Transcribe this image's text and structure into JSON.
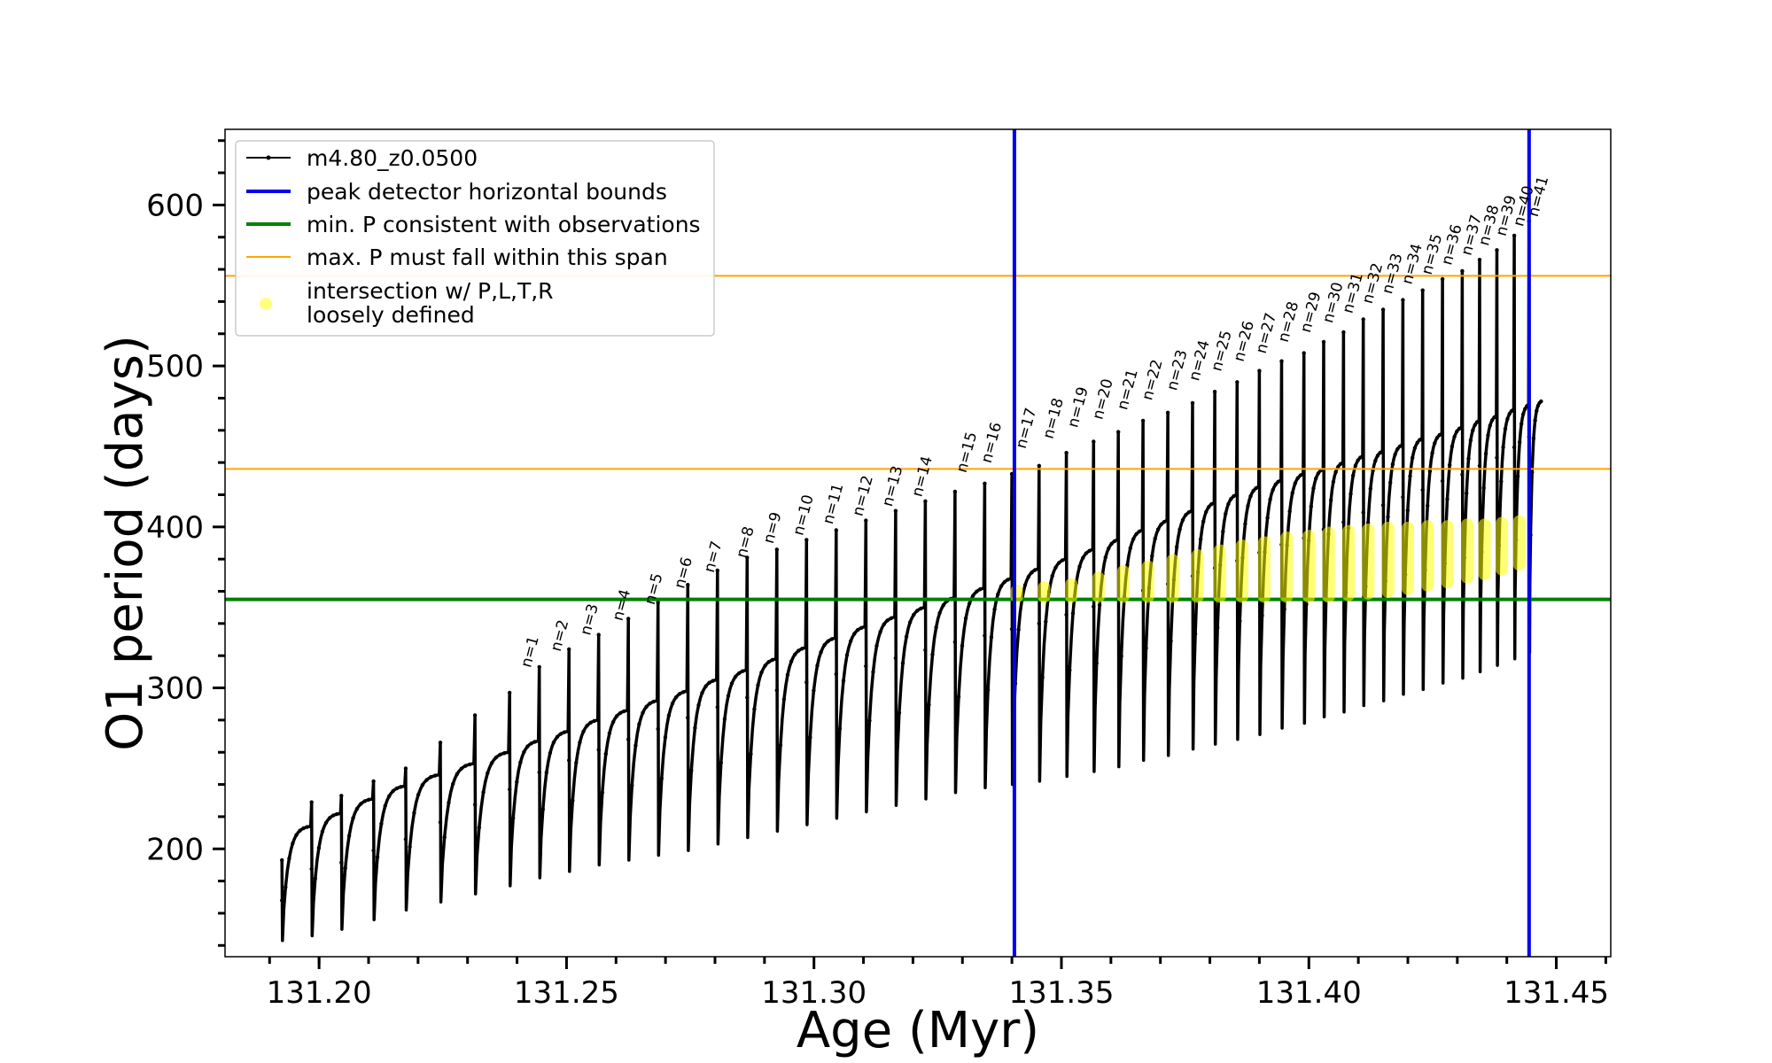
{
  "chart_data": {
    "type": "line",
    "xlabel": "Age (Myr)",
    "ylabel": "O1 period (days)",
    "xlim": [
      131.181,
      131.461
    ],
    "ylim": [
      133,
      647
    ],
    "x_ticks": [
      131.2,
      131.25,
      131.3,
      131.35,
      131.4,
      131.45
    ],
    "x_tick_labels": [
      "131.20",
      "131.25",
      "131.30",
      "131.35",
      "131.40",
      "131.45"
    ],
    "y_ticks": [
      200,
      300,
      400,
      500,
      600
    ],
    "y_tick_labels": [
      "200",
      "300",
      "400",
      "500",
      "600"
    ],
    "grid": false,
    "legend_position": "upper-left",
    "legend": [
      {
        "label": "m4.80_z0.0500",
        "kind": "line-marker",
        "color": "#000000"
      },
      {
        "label": "peak detector horizontal bounds",
        "kind": "line",
        "color": "#0000ee"
      },
      {
        "label": "min. P consistent with observations",
        "kind": "line",
        "color": "#008000"
      },
      {
        "label": "max. P must fall within this span",
        "kind": "line",
        "color": "#ffa500"
      },
      {
        "label_lines": [
          "intersection w/ P,L,T,R",
          "loosely defined"
        ],
        "kind": "marker",
        "color": "#ffff99"
      }
    ],
    "series": [
      {
        "name": "m4.80_z0.0500",
        "color": "#000000",
        "description_of_shape": "thermal pulse cycles; each cycle rises from a trough to a pre-pulse period then spikes",
        "pulse_ages": [
          131.1925,
          131.1985,
          131.2045,
          131.211,
          131.2175,
          131.2245,
          131.2315,
          131.2385,
          131.2445,
          131.2505,
          131.2565,
          131.2625,
          131.2685,
          131.2745,
          131.2805,
          131.2865,
          131.2925,
          131.2985,
          131.3045,
          131.3105,
          131.3165,
          131.3225,
          131.3285,
          131.3345,
          131.34,
          131.3455,
          131.351,
          131.3565,
          131.3615,
          131.3665,
          131.3715,
          131.3765,
          131.381,
          131.3855,
          131.39,
          131.3945,
          131.399,
          131.403,
          131.407,
          131.411,
          131.415,
          131.419,
          131.423,
          131.427,
          131.431,
          131.4345,
          131.438,
          131.4415,
          131.4445
        ],
        "trough_periods": [
          143,
          146,
          150,
          156,
          162,
          167,
          172,
          177,
          182,
          186,
          190,
          193,
          196,
          199,
          203,
          207,
          211,
          215,
          219,
          223,
          227,
          231,
          235,
          238,
          240,
          242,
          245,
          248,
          251,
          255,
          258,
          262,
          265,
          268,
          271,
          275,
          278,
          282,
          285,
          289,
          292,
          296,
          299,
          303,
          306,
          310,
          314,
          318,
          322
        ],
        "peak_periods": [
          214,
          222,
          231,
          239,
          246,
          253,
          260,
          267,
          273,
          280,
          286,
          292,
          298,
          305,
          311,
          318,
          325,
          331,
          338,
          344,
          350,
          356,
          362,
          368,
          374,
          380,
          386,
          392,
          398,
          404,
          410,
          415,
          420,
          425,
          429,
          433,
          436,
          440,
          444,
          447,
          451,
          455,
          458,
          462,
          466,
          469,
          473,
          476,
          478
        ],
        "spike_periods": [
          193,
          229,
          233,
          242,
          250,
          266,
          283,
          297,
          313,
          324,
          333,
          343,
          353,
          364,
          373,
          381,
          386,
          392,
          398,
          404,
          410,
          416,
          422,
          427,
          433,
          438,
          446,
          453,
          459,
          466,
          471,
          477,
          484,
          490,
          497,
          503,
          508,
          515,
          521,
          529,
          535,
          541,
          547,
          554,
          559,
          566,
          572,
          581,
          590
        ]
      }
    ],
    "vertical_lines": [
      {
        "name": "peak detector horizontal bounds",
        "x": 131.3405,
        "color": "#0000ee"
      },
      {
        "name": "peak detector horizontal bounds",
        "x": 131.4445,
        "color": "#0000ee"
      }
    ],
    "horizontal_lines": [
      {
        "name": "min. P consistent with observations",
        "y": 355,
        "color": "#008000"
      },
      {
        "name": "max. P must fall within this span",
        "y": 436,
        "color": "#ffa500"
      },
      {
        "name": "max. P must fall within this span",
        "y": 556,
        "color": "#ffa500"
      }
    ],
    "pulse_labels": [
      {
        "text": "n=1",
        "x": 131.242,
        "y": 310
      },
      {
        "text": "n=2",
        "x": 131.248,
        "y": 320
      },
      {
        "text": "n=3",
        "x": 131.254,
        "y": 330
      },
      {
        "text": "n=4",
        "x": 131.2605,
        "y": 339
      },
      {
        "text": "n=5",
        "x": 131.267,
        "y": 349
      },
      {
        "text": "n=6",
        "x": 131.273,
        "y": 359
      },
      {
        "text": "n=7",
        "x": 131.279,
        "y": 369
      },
      {
        "text": "n=8",
        "x": 131.2855,
        "y": 378
      },
      {
        "text": "n=9",
        "x": 131.291,
        "y": 387
      },
      {
        "text": "n=10",
        "x": 131.297,
        "y": 392
      },
      {
        "text": "n=11",
        "x": 131.303,
        "y": 399
      },
      {
        "text": "n=12",
        "x": 131.309,
        "y": 404
      },
      {
        "text": "n=13",
        "x": 131.315,
        "y": 410
      },
      {
        "text": "n=14",
        "x": 131.321,
        "y": 416
      },
      {
        "text": "n=15",
        "x": 131.33,
        "y": 431
      },
      {
        "text": "n=16",
        "x": 131.335,
        "y": 437
      },
      {
        "text": "n=17",
        "x": 131.342,
        "y": 446
      },
      {
        "text": "n=18",
        "x": 131.3475,
        "y": 452
      },
      {
        "text": "n=19",
        "x": 131.3525,
        "y": 459
      },
      {
        "text": "n=20",
        "x": 131.3575,
        "y": 464
      },
      {
        "text": "n=21",
        "x": 131.3625,
        "y": 470
      },
      {
        "text": "n=22",
        "x": 131.3675,
        "y": 476
      },
      {
        "text": "n=23",
        "x": 131.3725,
        "y": 482
      },
      {
        "text": "n=24",
        "x": 131.377,
        "y": 488
      },
      {
        "text": "n=25",
        "x": 131.3815,
        "y": 494
      },
      {
        "text": "n=26",
        "x": 131.386,
        "y": 500
      },
      {
        "text": "n=27",
        "x": 131.3905,
        "y": 505
      },
      {
        "text": "n=28",
        "x": 131.395,
        "y": 512
      },
      {
        "text": "n=29",
        "x": 131.3995,
        "y": 518
      },
      {
        "text": "n=30",
        "x": 131.404,
        "y": 524
      },
      {
        "text": "n=31",
        "x": 131.408,
        "y": 530
      },
      {
        "text": "n=32",
        "x": 131.412,
        "y": 536
      },
      {
        "text": "n=33",
        "x": 131.416,
        "y": 542
      },
      {
        "text": "n=34",
        "x": 131.42,
        "y": 548
      },
      {
        "text": "n=35",
        "x": 131.424,
        "y": 554
      },
      {
        "text": "n=36",
        "x": 131.428,
        "y": 560
      },
      {
        "text": "n=37",
        "x": 131.432,
        "y": 566
      },
      {
        "text": "n=38",
        "x": 131.4355,
        "y": 572
      },
      {
        "text": "n=39",
        "x": 131.439,
        "y": 578
      },
      {
        "text": "n=40",
        "x": 131.4425,
        "y": 584
      },
      {
        "text": "n=41",
        "x": 131.4455,
        "y": 590
      }
    ],
    "intersection_markers": [
      {
        "x": 131.341,
        "ymin": 355,
        "ymax": 362
      },
      {
        "x": 131.3465,
        "ymin": 355,
        "ymax": 364
      },
      {
        "x": 131.352,
        "ymin": 355,
        "ymax": 366
      },
      {
        "x": 131.3575,
        "ymin": 355,
        "ymax": 370
      },
      {
        "x": 131.3625,
        "ymin": 355,
        "ymax": 374
      },
      {
        "x": 131.3675,
        "ymin": 355,
        "ymax": 377
      },
      {
        "x": 131.3725,
        "ymin": 355,
        "ymax": 381
      },
      {
        "x": 131.3775,
        "ymin": 355,
        "ymax": 384
      },
      {
        "x": 131.382,
        "ymin": 355,
        "ymax": 387
      },
      {
        "x": 131.3865,
        "ymin": 355,
        "ymax": 390
      },
      {
        "x": 131.391,
        "ymin": 355,
        "ymax": 392
      },
      {
        "x": 131.3955,
        "ymin": 355,
        "ymax": 395
      },
      {
        "x": 131.4,
        "ymin": 355,
        "ymax": 396
      },
      {
        "x": 131.404,
        "ymin": 355,
        "ymax": 398
      },
      {
        "x": 131.408,
        "ymin": 356,
        "ymax": 399
      },
      {
        "x": 131.412,
        "ymin": 357,
        "ymax": 400
      },
      {
        "x": 131.416,
        "ymin": 358,
        "ymax": 401
      },
      {
        "x": 131.42,
        "ymin": 360,
        "ymax": 401
      },
      {
        "x": 131.424,
        "ymin": 362,
        "ymax": 402
      },
      {
        "x": 131.428,
        "ymin": 364,
        "ymax": 402
      },
      {
        "x": 131.432,
        "ymin": 367,
        "ymax": 403
      },
      {
        "x": 131.4355,
        "ymin": 369,
        "ymax": 403
      },
      {
        "x": 131.439,
        "ymin": 372,
        "ymax": 404
      },
      {
        "x": 131.4425,
        "ymin": 375,
        "ymax": 405
      }
    ]
  }
}
